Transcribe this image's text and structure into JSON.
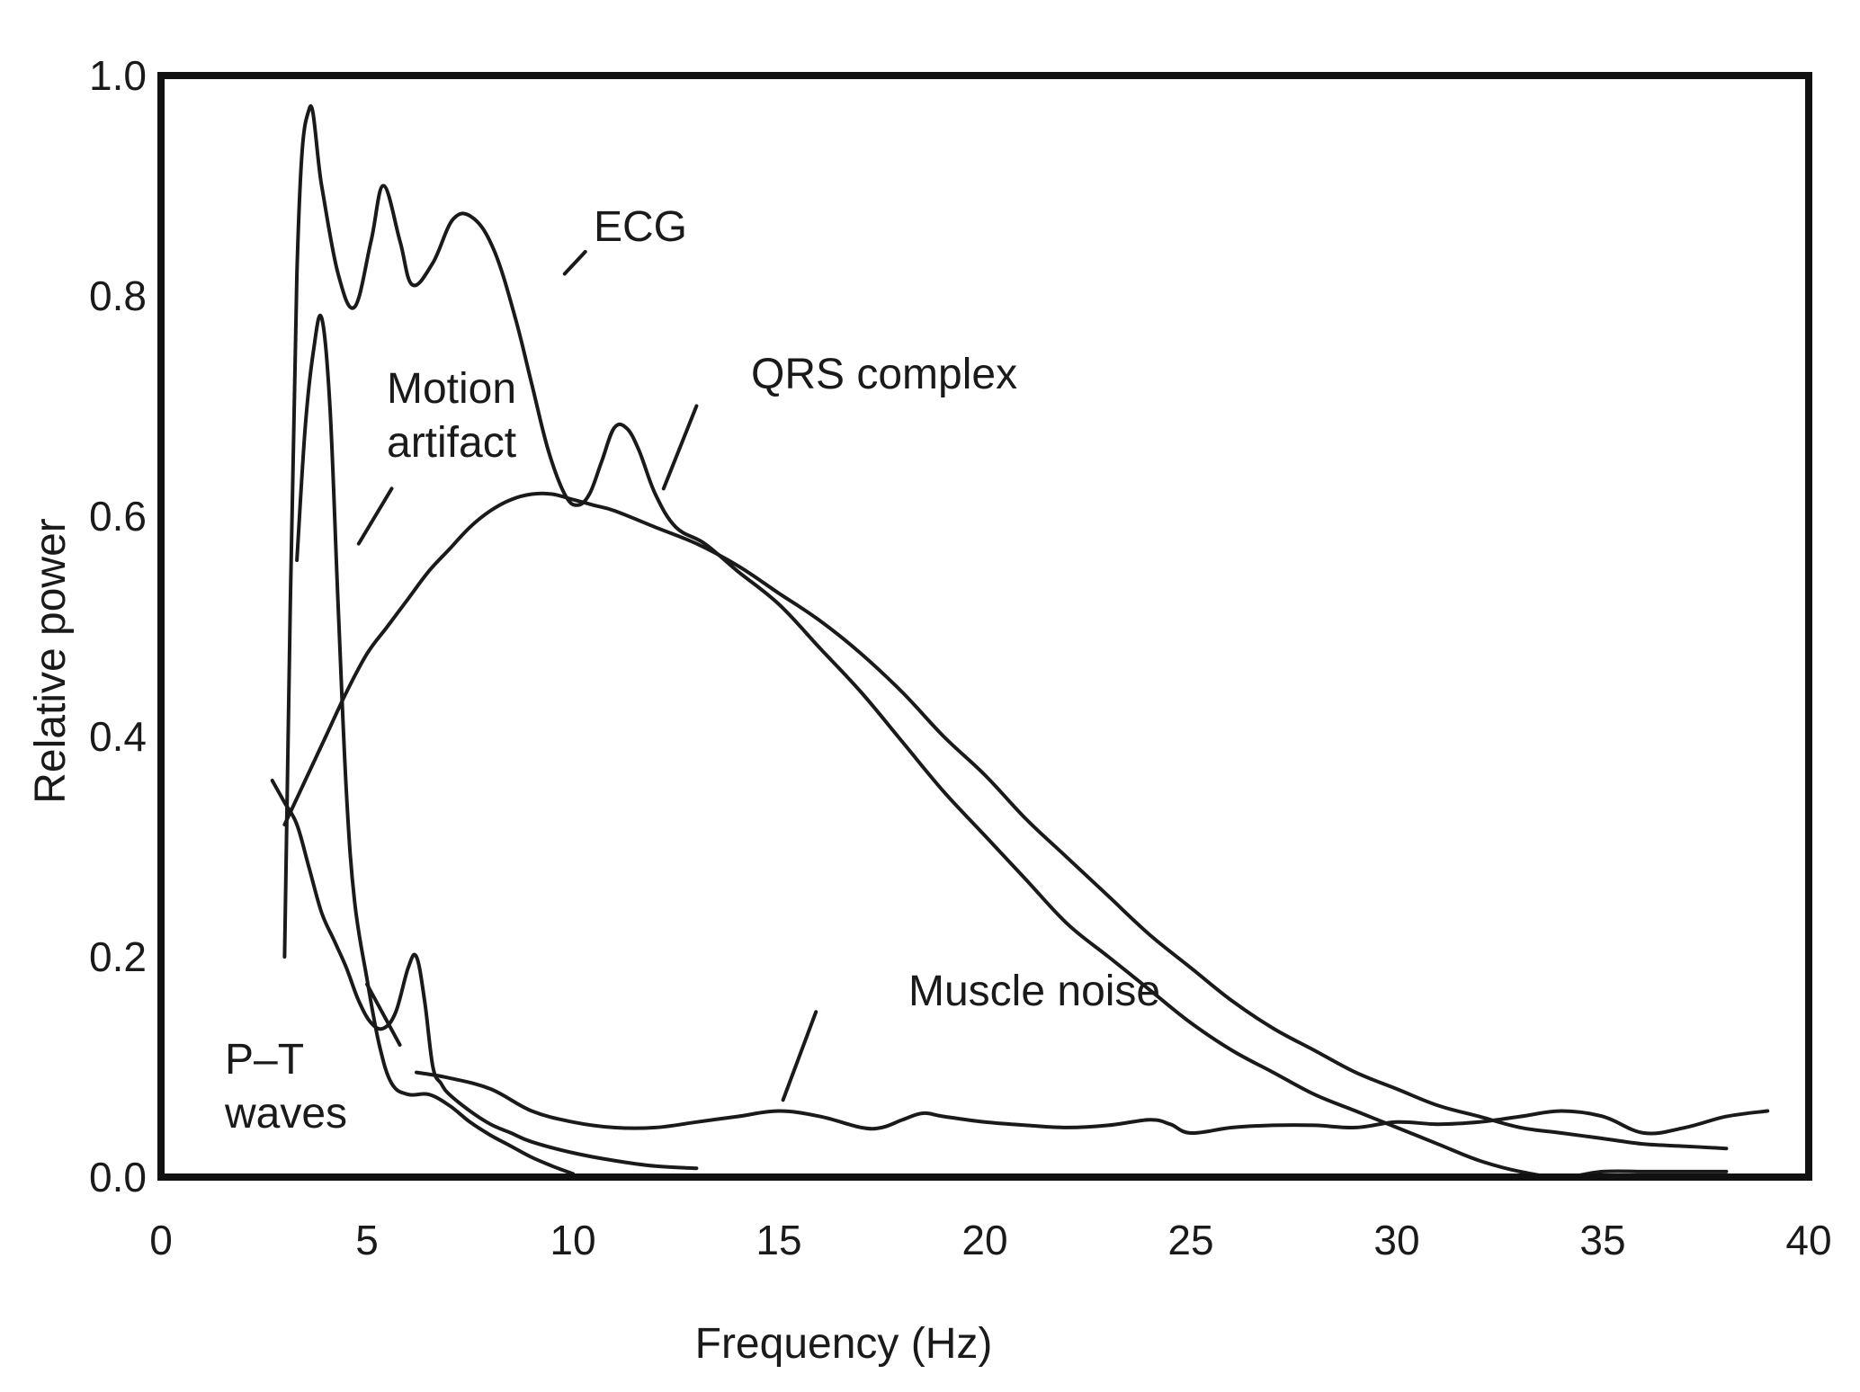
{
  "chart_data": {
    "type": "line",
    "title": "",
    "xlabel": "Frequency (Hz)",
    "ylabel": "Relative power",
    "xlim": [
      0,
      40
    ],
    "ylim": [
      0,
      1.0
    ],
    "xticks": [
      0,
      5,
      10,
      15,
      20,
      25,
      30,
      35,
      40
    ],
    "xtick_labels": [
      "0",
      "5",
      "10",
      "15",
      "20",
      "25",
      "30",
      "35",
      "40"
    ],
    "yticks": [
      0,
      0.2,
      0.4,
      0.6,
      0.8,
      1.0
    ],
    "ytick_labels": [
      "0.0",
      "0.2",
      "0.4",
      "0.6",
      "0.8",
      "1.0"
    ],
    "grid": false,
    "series": [
      {
        "name": "ECG",
        "x": [
          3.0,
          3.3,
          3.6,
          3.9,
          4.3,
          4.7,
          5.1,
          5.4,
          5.8,
          6.1,
          6.6,
          7.1,
          7.6,
          8.1,
          8.6,
          9.0,
          9.4,
          9.8,
          10.1,
          10.4,
          10.7,
          11.0,
          11.3,
          11.6,
          12.0,
          12.5,
          13.2,
          14.0,
          15.0,
          16.0,
          17.0,
          18.0,
          19.0,
          20.0,
          21.0,
          22.0,
          23.0,
          24.0,
          25.0,
          26.0,
          27.0,
          28.0,
          29.0,
          30.0,
          31.0,
          32.0,
          33.0,
          34.0,
          35.0,
          36.0,
          37.0,
          38.0
        ],
        "y": [
          0.2,
          0.82,
          0.97,
          0.9,
          0.82,
          0.79,
          0.85,
          0.9,
          0.85,
          0.81,
          0.83,
          0.87,
          0.87,
          0.84,
          0.78,
          0.72,
          0.66,
          0.62,
          0.61,
          0.62,
          0.65,
          0.68,
          0.68,
          0.66,
          0.62,
          0.59,
          0.575,
          0.55,
          0.52,
          0.48,
          0.44,
          0.395,
          0.35,
          0.31,
          0.27,
          0.23,
          0.2,
          0.17,
          0.14,
          0.115,
          0.095,
          0.075,
          0.06,
          0.045,
          0.03,
          0.015,
          0.005,
          0.0,
          0.005,
          0.005,
          0.005,
          0.005
        ]
      },
      {
        "name": "QRS complex",
        "x": [
          3.0,
          3.5,
          4.0,
          4.5,
          5.0,
          5.5,
          6.0,
          6.5,
          7.0,
          7.5,
          8.0,
          8.5,
          9.0,
          9.5,
          10.0,
          10.5,
          11.0,
          12.0,
          13.0,
          14.0,
          15.0,
          16.0,
          17.0,
          18.0,
          19.0,
          20.0,
          21.0,
          22.0,
          23.0,
          24.0,
          25.0,
          26.0,
          27.0,
          28.0,
          29.0,
          30.0,
          31.0,
          32.0,
          33.0,
          34.0,
          35.0,
          36.0,
          37.0,
          38.0
        ],
        "y": [
          0.32,
          0.36,
          0.4,
          0.44,
          0.475,
          0.5,
          0.525,
          0.55,
          0.57,
          0.59,
          0.605,
          0.615,
          0.62,
          0.62,
          0.615,
          0.61,
          0.605,
          0.59,
          0.575,
          0.555,
          0.53,
          0.505,
          0.475,
          0.44,
          0.4,
          0.365,
          0.325,
          0.29,
          0.255,
          0.22,
          0.19,
          0.16,
          0.135,
          0.115,
          0.095,
          0.08,
          0.065,
          0.055,
          0.045,
          0.04,
          0.035,
          0.03,
          0.028,
          0.026
        ]
      },
      {
        "name": "Motion artifact",
        "x": [
          3.3,
          3.5,
          3.7,
          3.9,
          4.1,
          4.3,
          4.5,
          4.7,
          5.0,
          5.3,
          5.6,
          6.0,
          6.5,
          7.0,
          7.5,
          8.0,
          8.5,
          9.0,
          9.5,
          10.0
        ],
        "y": [
          0.56,
          0.68,
          0.75,
          0.78,
          0.7,
          0.52,
          0.35,
          0.25,
          0.18,
          0.12,
          0.085,
          0.075,
          0.075,
          0.065,
          0.05,
          0.038,
          0.028,
          0.018,
          0.01,
          0.003
        ]
      },
      {
        "name": "P–T waves",
        "x": [
          2.7,
          3.0,
          3.3,
          3.6,
          3.9,
          4.2,
          4.5,
          4.8,
          5.1,
          5.4,
          5.7,
          6.0,
          6.2,
          6.4,
          6.6,
          6.8,
          7.0,
          7.5,
          8.0,
          8.5,
          9.0,
          10.0,
          11.0,
          12.0,
          13.0
        ],
        "y": [
          0.36,
          0.34,
          0.32,
          0.28,
          0.24,
          0.215,
          0.19,
          0.16,
          0.14,
          0.135,
          0.15,
          0.19,
          0.2,
          0.16,
          0.1,
          0.085,
          0.075,
          0.06,
          0.048,
          0.04,
          0.032,
          0.022,
          0.015,
          0.01,
          0.008
        ]
      },
      {
        "name": "Muscle noise",
        "x": [
          6.2,
          7.0,
          8.0,
          9.0,
          10.0,
          11.0,
          12.0,
          13.0,
          14.0,
          15.0,
          16.0,
          17.0,
          17.5,
          18.0,
          18.5,
          19.0,
          20.0,
          21.0,
          22.0,
          23.0,
          24.0,
          24.5,
          25.0,
          26.0,
          27.0,
          28.0,
          29.0,
          30.0,
          31.0,
          32.0,
          33.0,
          34.0,
          35.0,
          36.0,
          37.0,
          38.0,
          39.0
        ],
        "y": [
          0.095,
          0.09,
          0.08,
          0.06,
          0.05,
          0.045,
          0.045,
          0.05,
          0.055,
          0.06,
          0.055,
          0.045,
          0.045,
          0.052,
          0.058,
          0.055,
          0.05,
          0.047,
          0.045,
          0.047,
          0.052,
          0.048,
          0.04,
          0.045,
          0.047,
          0.047,
          0.045,
          0.05,
          0.048,
          0.05,
          0.055,
          0.06,
          0.055,
          0.04,
          0.045,
          0.055,
          0.06
        ]
      }
    ],
    "annotations": [
      {
        "key": "ecg",
        "lines": [
          "ECG"
        ],
        "anchor_x": 9.8,
        "anchor_y": 0.82,
        "near_x": 10.3,
        "near_y": 0.84
      },
      {
        "key": "qrs",
        "lines": [
          "QRS complex"
        ],
        "anchor_x": 12.2,
        "anchor_y": 0.625,
        "near_x": 13.0,
        "near_y": 0.7
      },
      {
        "key": "motion",
        "lines": [
          "Motion",
          "artifact"
        ],
        "anchor_x": 4.8,
        "anchor_y": 0.575,
        "near_x": 5.6,
        "near_y": 0.625
      },
      {
        "key": "pt",
        "lines": [
          "P–T",
          "waves"
        ],
        "anchor_x": 5.0,
        "anchor_y": 0.175,
        "near_x": 5.8,
        "near_y": 0.12
      },
      {
        "key": "muscle",
        "lines": [
          "Muscle noise"
        ],
        "anchor_x": 15.1,
        "anchor_y": 0.07,
        "near_x": 15.9,
        "near_y": 0.15
      }
    ]
  }
}
